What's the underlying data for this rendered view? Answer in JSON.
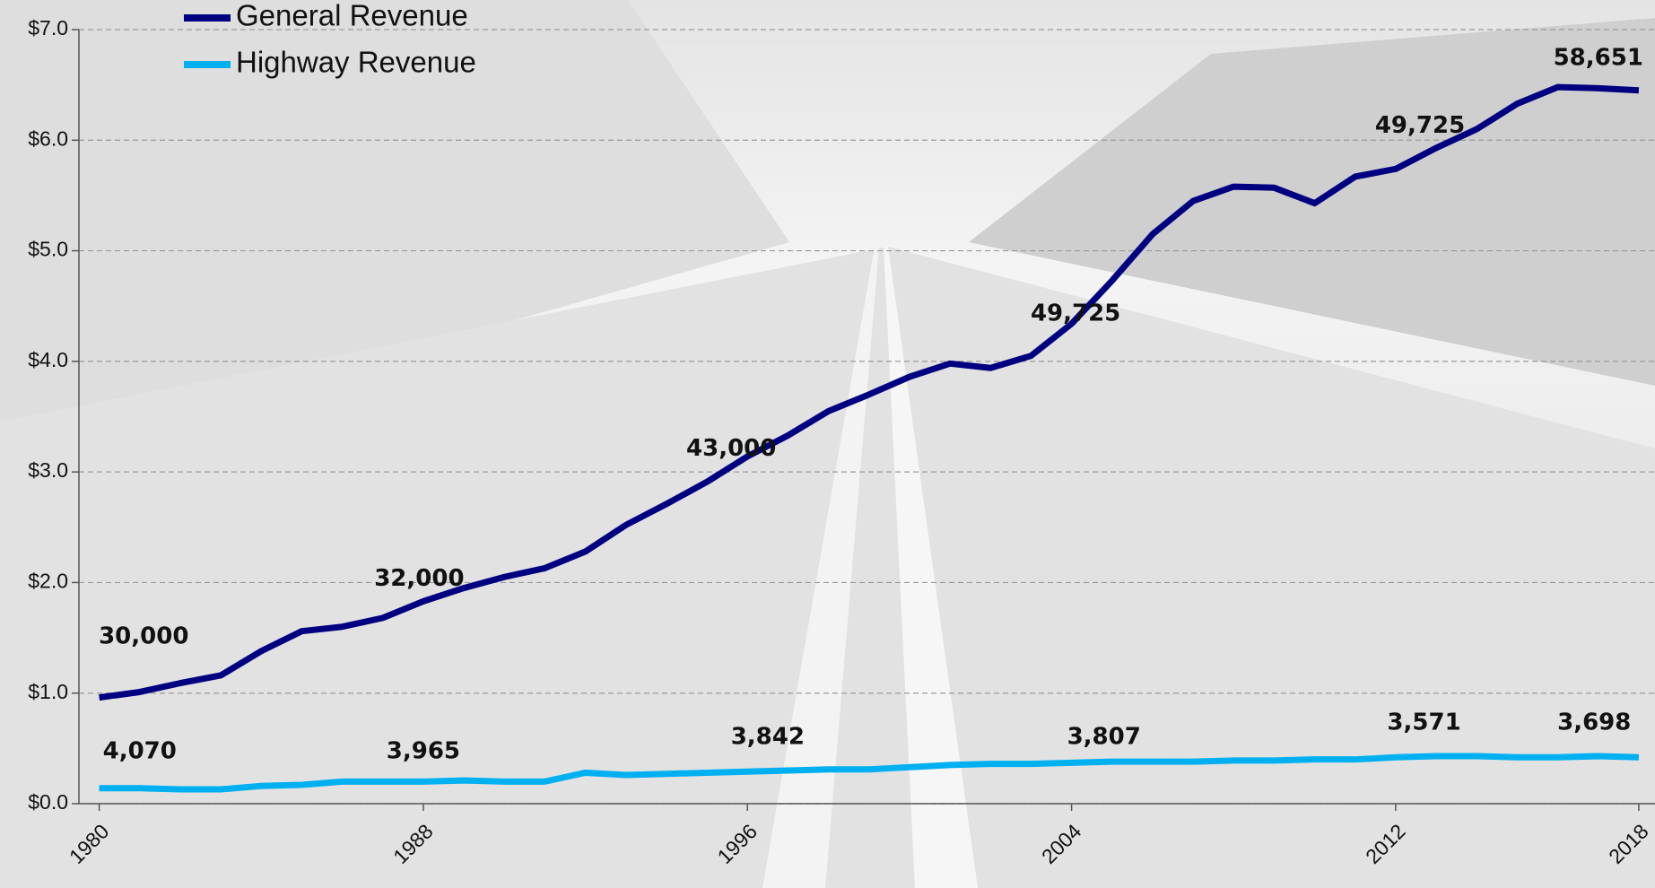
{
  "chart_data": {
    "type": "line",
    "x": [
      1980,
      1981,
      1982,
      1983,
      1984,
      1985,
      1986,
      1987,
      1988,
      1989,
      1990,
      1991,
      1992,
      1993,
      1994,
      1995,
      1996,
      1997,
      1998,
      1999,
      2000,
      2001,
      2002,
      2003,
      2004,
      2005,
      2006,
      2007,
      2008,
      2009,
      2010,
      2011,
      2012,
      2013,
      2014,
      2015,
      2016,
      2017,
      2018
    ],
    "series": [
      {
        "name": "General Revenue",
        "color": "#000080",
        "values": [
          0.96,
          1.01,
          1.09,
          1.16,
          1.38,
          1.56,
          1.6,
          1.68,
          1.83,
          1.95,
          2.05,
          2.13,
          2.28,
          2.52,
          2.71,
          2.91,
          3.14,
          3.33,
          3.55,
          3.7,
          3.86,
          3.98,
          3.94,
          4.05,
          4.34,
          4.73,
          5.15,
          5.45,
          5.58,
          5.57,
          5.43,
          5.67,
          5.74,
          5.93,
          6.1,
          6.33,
          6.48,
          6.47,
          6.45
        ]
      },
      {
        "name": "Highway Revenue",
        "color": "#00b0f0",
        "values": [
          0.14,
          0.14,
          0.13,
          0.13,
          0.16,
          0.17,
          0.2,
          0.2,
          0.2,
          0.21,
          0.2,
          0.2,
          0.28,
          0.26,
          0.27,
          0.28,
          0.29,
          0.3,
          0.31,
          0.31,
          0.33,
          0.35,
          0.36,
          0.36,
          0.37,
          0.38,
          0.38,
          0.38,
          0.39,
          0.39,
          0.4,
          0.4,
          0.42,
          0.43,
          0.43,
          0.42,
          0.42,
          0.43,
          0.42
        ]
      }
    ],
    "xlim": [
      1979.5,
      2018.4
    ],
    "xticks": [
      1980,
      1988,
      1996,
      2004,
      2012,
      2018
    ],
    "ylim": [
      0,
      7
    ],
    "yticks": [
      {
        "value": 0,
        "label": "$0.0"
      },
      {
        "value": 1,
        "label": "$1.0"
      },
      {
        "value": 2,
        "label": "$2.0"
      },
      {
        "value": 3,
        "label": "$3.0"
      },
      {
        "value": 4,
        "label": "$4.0"
      },
      {
        "value": 5,
        "label": "$5.0"
      },
      {
        "value": 6,
        "label": "$6.0"
      },
      {
        "value": 7,
        "label": "$7.0"
      }
    ],
    "grid": true,
    "legend": "top-left",
    "annotations": [
      {
        "text": "30,000",
        "x": 1981.1,
        "y": 1.51
      },
      {
        "text": "32,000",
        "x": 1987.9,
        "y": 2.03
      },
      {
        "text": "43,000",
        "x": 1995.6,
        "y": 3.21
      },
      {
        "text": "49,725",
        "x": 2004.1,
        "y": 4.43
      },
      {
        "text": "49,725",
        "x": 2012.6,
        "y": 6.13
      },
      {
        "text": "58,651",
        "x": 2017.0,
        "y": 6.74
      },
      {
        "text": "4,070",
        "x": 1981.0,
        "y": 0.47
      },
      {
        "text": "3,965",
        "x": 1988.0,
        "y": 0.47
      },
      {
        "text": "3,842",
        "x": 1996.5,
        "y": 0.6
      },
      {
        "text": "3,807",
        "x": 2004.8,
        "y": 0.6
      },
      {
        "text": "3,571",
        "x": 2012.7,
        "y": 0.73
      },
      {
        "text": "3,698",
        "x": 2016.9,
        "y": 0.73
      }
    ]
  }
}
